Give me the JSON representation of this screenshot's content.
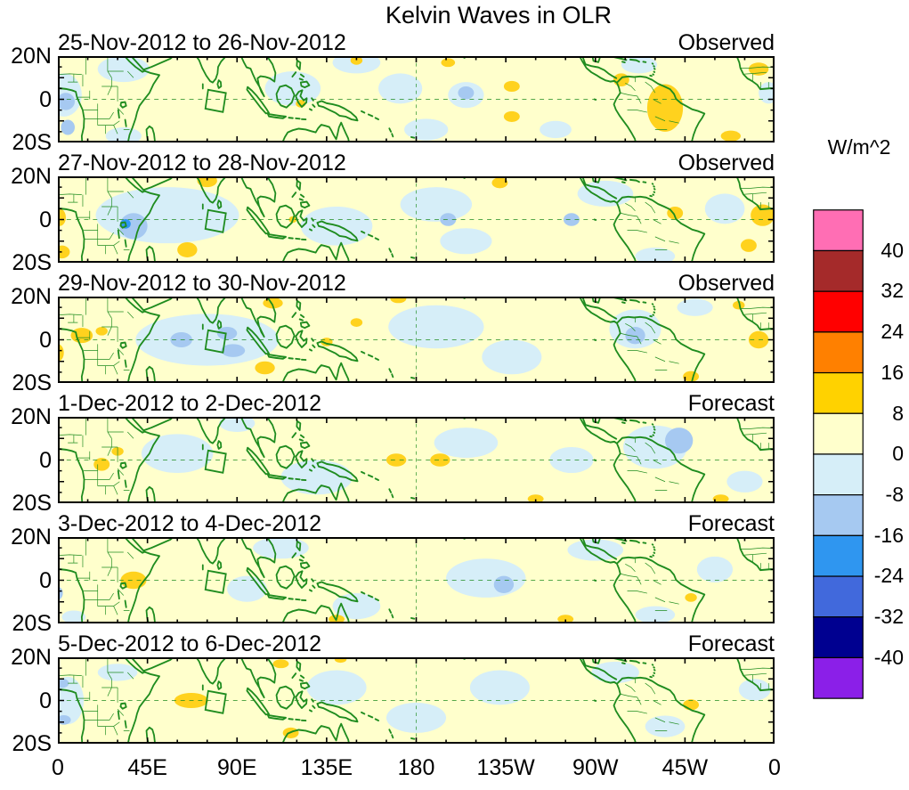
{
  "title": "Kelvin Waves in OLR",
  "colorbar": {
    "unit_label": "W/m^2",
    "tick_labels": [
      "40",
      "32",
      "24",
      "16",
      "8",
      "0",
      "-8",
      "-16",
      "-24",
      "-32",
      "-40"
    ],
    "colors_top_to_bottom": [
      "#FF6EB4",
      "#A52A2A",
      "#FF0000",
      "#FF8000",
      "#FFD200",
      "#FFFFCC",
      "#D6EEF8",
      "#A6C9F1",
      "#2F96F0",
      "#4169DC",
      "#000090",
      "#8B1FE8"
    ]
  },
  "axes": {
    "lon_tick_labels": [
      "0",
      "45E",
      "90E",
      "135E",
      "180",
      "135W",
      "90W",
      "45W",
      "0"
    ],
    "lat_tick_labels": [
      "20N",
      "0",
      "20S"
    ]
  },
  "map_style": {
    "coast_color": "#1f8c1f",
    "frame_color": "#000000"
  },
  "chart_data": {
    "type": "heatmap",
    "subtype": "filled-contour-longitude-latitude-maps",
    "title": "Kelvin Waves in OLR",
    "units": "W/m^2",
    "domain": {
      "lon_range": [
        0,
        360
      ],
      "lat_range": [
        -20,
        20
      ]
    },
    "contour_levels": [
      -40,
      -32,
      -24,
      -16,
      -8,
      0,
      8,
      16,
      24,
      32,
      40
    ],
    "level_colors": {
      "p8": "#FFFFCC",
      "m8": "#D6EEF8",
      "m16": "#A6C9F1",
      "m24": "#2F96F0",
      "p16": "#FFD21E"
    },
    "anomaly_format": "[lon_deg_east_0_360, lat_deg_north, radius_lon_deg, radius_lat_deg, level_band]",
    "gridlines": {
      "equator_dashed": true,
      "dateline_dashed": true
    },
    "reference_box": {
      "lon": [
        74,
        85
      ],
      "lat": [
        -6,
        5
      ]
    },
    "panels": [
      {
        "date_range": "25-Nov-2012 to 26-Nov-2012",
        "status": "Observed",
        "anomalies": [
          [
            3,
            2,
            9,
            10,
            "m8"
          ],
          [
            4,
            -1,
            4.5,
            4,
            "m16"
          ],
          [
            5,
            -13,
            3.5,
            3.5,
            "m16"
          ],
          [
            33,
            14,
            13,
            6,
            "m8"
          ],
          [
            33,
            -17,
            9,
            4,
            "m8"
          ],
          [
            118,
            5,
            14,
            8,
            "m8"
          ],
          [
            150,
            17,
            12,
            5,
            "m8"
          ],
          [
            172,
            5,
            11,
            7,
            "m8"
          ],
          [
            205,
            2,
            9,
            6,
            "m8"
          ],
          [
            205,
            3,
            4,
            3,
            "m16"
          ],
          [
            185,
            -14,
            11,
            5,
            "m8"
          ],
          [
            250,
            -14,
            8,
            4,
            "m8"
          ],
          [
            292,
            16,
            9,
            4,
            "m8"
          ],
          [
            357,
            3,
            5,
            5,
            "m8"
          ],
          [
            150,
            18,
            3,
            2,
            "p16"
          ],
          [
            122,
            -2,
            2.5,
            1.8,
            "p16"
          ],
          [
            196,
            17,
            3.5,
            2,
            "p16"
          ],
          [
            228,
            6,
            4,
            2.5,
            "p16"
          ],
          [
            228,
            -8,
            4,
            2.5,
            "p16"
          ],
          [
            305,
            -4,
            9,
            11,
            "p16"
          ],
          [
            283,
            9,
            4,
            3,
            "p16"
          ],
          [
            352,
            14,
            5,
            3,
            "p16"
          ],
          [
            338,
            -17,
            5,
            2.5,
            "p16"
          ]
        ]
      },
      {
        "date_range": "27-Nov-2012 to 28-Nov-2012",
        "status": "Observed",
        "anomalies": [
          [
            55,
            2,
            36,
            13,
            "m8"
          ],
          [
            140,
            -3,
            18,
            9,
            "m8"
          ],
          [
            190,
            7,
            18,
            8,
            "m8"
          ],
          [
            205,
            -10,
            13,
            6,
            "m8"
          ],
          [
            275,
            12,
            14,
            6,
            "m8"
          ],
          [
            300,
            -17,
            10,
            4,
            "m8"
          ],
          [
            335,
            5,
            10,
            7,
            "m8"
          ],
          [
            38,
            -3,
            7,
            6,
            "m16"
          ],
          [
            34,
            -2,
            2.6,
            2.2,
            "m24"
          ],
          [
            196,
            0,
            4,
            3,
            "m16"
          ],
          [
            258,
            0,
            4,
            3,
            "m16"
          ],
          [
            1,
            1,
            3,
            4,
            "p16"
          ],
          [
            2,
            -15,
            4,
            3,
            "p16"
          ],
          [
            75,
            18,
            5,
            3,
            "p16"
          ],
          [
            65,
            -14,
            5,
            3.5,
            "p16"
          ],
          [
            118,
            0,
            2,
            1.5,
            "p16"
          ],
          [
            222,
            17,
            4,
            2.5,
            "p16"
          ],
          [
            354,
            2,
            6,
            5,
            "p16"
          ],
          [
            310,
            3,
            4,
            3,
            "p16"
          ],
          [
            347,
            -12,
            4,
            3,
            "p16"
          ]
        ]
      },
      {
        "date_range": "29-Nov-2012 to 30-Nov-2012",
        "status": "Observed",
        "anomalies": [
          [
            75,
            0,
            36,
            12,
            "m8"
          ],
          [
            190,
            6,
            24,
            10,
            "m8"
          ],
          [
            228,
            -8,
            15,
            8,
            "m8"
          ],
          [
            290,
            5,
            13,
            9,
            "m8"
          ],
          [
            320,
            15,
            9,
            4,
            "m8"
          ],
          [
            62,
            0,
            5.5,
            3.5,
            "m16"
          ],
          [
            85,
            3,
            5,
            3,
            "m16"
          ],
          [
            88,
            -5,
            6,
            3,
            "m16"
          ],
          [
            290,
            2,
            5,
            4,
            "m16"
          ],
          [
            12,
            2,
            5.5,
            3.5,
            "p16"
          ],
          [
            22,
            4,
            3,
            2,
            "p16"
          ],
          [
            0,
            -6,
            3,
            4,
            "p16"
          ],
          [
            104,
            -13,
            5,
            3,
            "p16"
          ],
          [
            108,
            17,
            5,
            2.5,
            "p16"
          ],
          [
            135,
            -1,
            3,
            2,
            "p16"
          ],
          [
            150,
            8,
            3,
            2,
            "p16"
          ],
          [
            171,
            19,
            4,
            2,
            "p16"
          ],
          [
            352,
            0,
            5,
            4,
            "p16"
          ],
          [
            318,
            -17,
            4,
            2.5,
            "p16"
          ],
          [
            342,
            16,
            3,
            2,
            "p16"
          ]
        ]
      },
      {
        "date_range": "1-Dec-2012 to 2-Dec-2012",
        "status": "Forecast",
        "anomalies": [
          [
            60,
            3,
            18,
            9,
            "m8"
          ],
          [
            90,
            17,
            9,
            4,
            "m8"
          ],
          [
            130,
            -8,
            18,
            8,
            "m8"
          ],
          [
            205,
            8,
            16,
            7,
            "m8"
          ],
          [
            258,
            0,
            11,
            6,
            "m8"
          ],
          [
            300,
            6,
            16,
            10,
            "m8"
          ],
          [
            345,
            -10,
            9,
            5,
            "m8"
          ],
          [
            312,
            9,
            7,
            6,
            "m16"
          ],
          [
            22,
            -2,
            4,
            3,
            "p16"
          ],
          [
            30,
            4,
            3,
            2,
            "p16"
          ],
          [
            170,
            0,
            5,
            3,
            "p16"
          ],
          [
            192,
            0,
            5,
            3,
            "p16"
          ],
          [
            240,
            -18,
            4,
            2,
            "p16"
          ],
          [
            333,
            -18,
            4,
            2,
            "p16"
          ]
        ]
      },
      {
        "date_range": "3-Dec-2012 to 4-Dec-2012",
        "status": "Forecast",
        "anomalies": [
          [
            0,
            -6,
            2.5,
            3,
            "m16"
          ],
          [
            8,
            -17,
            6,
            3,
            "m8"
          ],
          [
            112,
            15,
            14,
            5,
            "m8"
          ],
          [
            95,
            -4,
            10,
            6,
            "m8"
          ],
          [
            150,
            -12,
            12,
            6,
            "m8"
          ],
          [
            215,
            1,
            20,
            9,
            "m8"
          ],
          [
            224,
            -2,
            5,
            4,
            "m16"
          ],
          [
            270,
            14,
            14,
            5,
            "m8"
          ],
          [
            300,
            -16,
            10,
            4,
            "m8"
          ],
          [
            330,
            5,
            9,
            6,
            "m8"
          ],
          [
            38,
            0,
            6.5,
            4,
            "p16"
          ],
          [
            140,
            -18,
            4,
            2,
            "p16"
          ],
          [
            255,
            -18,
            4,
            2,
            "p16"
          ],
          [
            318,
            -8,
            3,
            2,
            "p16"
          ]
        ]
      },
      {
        "date_range": "5-Dec-2012 to 6-Dec-2012",
        "status": "Forecast",
        "anomalies": [
          [
            5,
            0,
            8,
            11,
            "m8"
          ],
          [
            2,
            8,
            3.5,
            2.2,
            "m16"
          ],
          [
            3,
            -9,
            3.5,
            2.2,
            "m16"
          ],
          [
            30,
            13,
            10,
            4,
            "m8"
          ],
          [
            140,
            6,
            15,
            8,
            "m8"
          ],
          [
            180,
            -8,
            15,
            7,
            "m8"
          ],
          [
            222,
            6,
            15,
            8,
            "m8"
          ],
          [
            280,
            13,
            12,
            5,
            "m8"
          ],
          [
            305,
            -12,
            10,
            5,
            "m8"
          ],
          [
            350,
            5,
            8,
            5,
            "m8"
          ],
          [
            67,
            0,
            8.5,
            3.5,
            "p16"
          ],
          [
            112,
            17,
            4,
            2,
            "p16"
          ],
          [
            117,
            -15,
            4,
            2.5,
            "p16"
          ],
          [
            142,
            19,
            3,
            1.5,
            "p16"
          ],
          [
            318,
            -2,
            4,
            2.5,
            "p16"
          ]
        ]
      }
    ]
  }
}
